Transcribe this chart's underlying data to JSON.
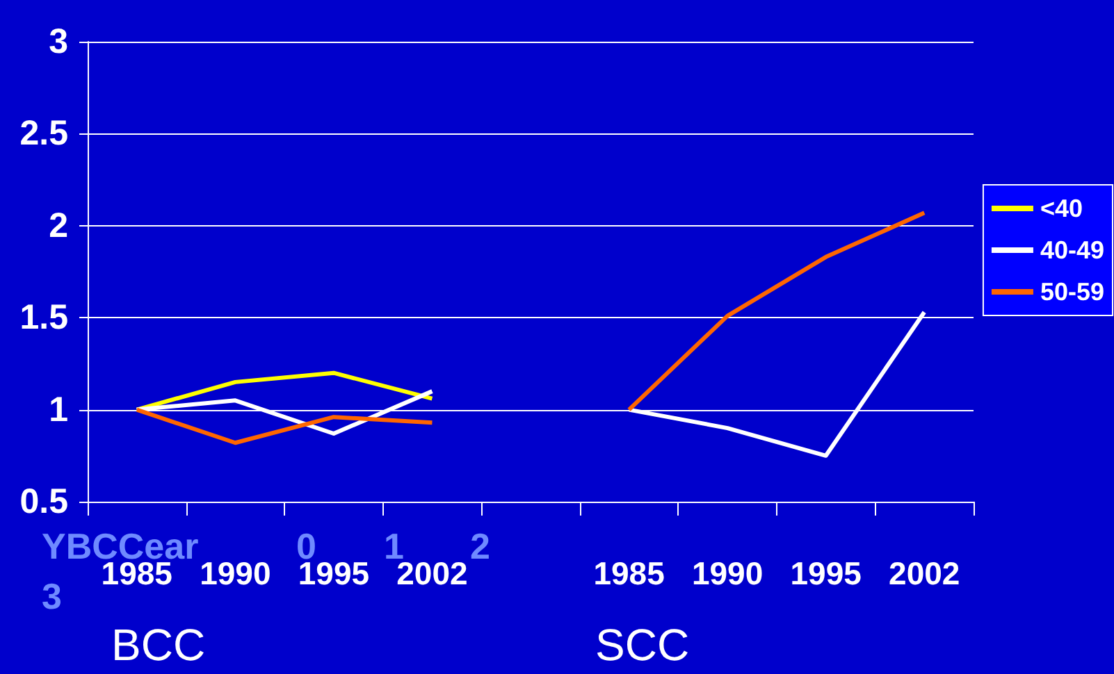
{
  "chart_data": {
    "type": "line",
    "categories": [
      "1985",
      "1990",
      "1995",
      "2002",
      null,
      "1985",
      "1990",
      "1995",
      "2002"
    ],
    "series": [
      {
        "name": "<40",
        "color": "#ffff00",
        "values": [
          1,
          1.15,
          1.2,
          1.06,
          null,
          null,
          null,
          null,
          null
        ]
      },
      {
        "name": "40-49",
        "color": "#ffffff",
        "values": [
          1,
          1.05,
          0.87,
          1.1,
          null,
          1,
          0.9,
          0.75,
          1.53
        ]
      },
      {
        "name": "50-59",
        "color": "#ff6600",
        "values": [
          1,
          0.82,
          0.96,
          0.93,
          null,
          1,
          1.51,
          1.83,
          2.07
        ]
      }
    ],
    "ylim": [
      0.5,
      3
    ],
    "yticks": [
      0.5,
      1,
      1.5,
      2,
      2.5,
      3
    ],
    "grid": "y",
    "legend": "right",
    "marker": "none",
    "annotations": [
      "BCC",
      "SCC",
      "YBCCear",
      "0",
      "1",
      "2",
      "3"
    ]
  }
}
